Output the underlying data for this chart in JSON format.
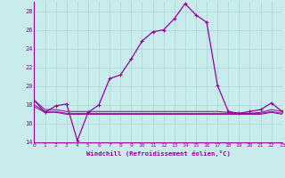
{
  "xlabel": "Windchill (Refroidissement éolien,°C)",
  "background_color": "#c8ecec",
  "grid_color": "#aacccc",
  "line_color": "#990099",
  "x_hours": [
    0,
    1,
    2,
    3,
    4,
    5,
    6,
    7,
    8,
    9,
    10,
    11,
    12,
    13,
    14,
    15,
    16,
    17,
    18,
    19,
    20,
    21,
    22,
    23
  ],
  "windchill": [
    18.5,
    17.2,
    17.9,
    18.1,
    14.2,
    17.2,
    18.0,
    20.8,
    21.2,
    22.9,
    24.8,
    25.8,
    26.0,
    27.2,
    28.8,
    27.6,
    26.8,
    20.1,
    17.3,
    17.1,
    17.3,
    17.5,
    18.2,
    17.3
  ],
  "flat1": [
    18.5,
    17.5,
    17.5,
    17.3,
    17.3,
    17.3,
    17.3,
    17.3,
    17.3,
    17.3,
    17.3,
    17.3,
    17.3,
    17.3,
    17.3,
    17.3,
    17.3,
    17.3,
    17.2,
    17.1,
    17.1,
    17.2,
    17.5,
    17.3
  ],
  "flat2": [
    18.0,
    17.3,
    17.3,
    17.1,
    17.1,
    17.1,
    17.1,
    17.1,
    17.1,
    17.1,
    17.1,
    17.1,
    17.1,
    17.1,
    17.1,
    17.1,
    17.1,
    17.1,
    17.1,
    17.1,
    17.1,
    17.1,
    17.3,
    17.1
  ],
  "flat3": [
    17.8,
    17.2,
    17.2,
    17.0,
    17.0,
    17.0,
    17.0,
    17.0,
    17.0,
    17.0,
    17.0,
    17.0,
    17.0,
    17.0,
    17.0,
    17.0,
    17.0,
    17.0,
    17.0,
    17.0,
    17.0,
    17.0,
    17.2,
    17.0
  ],
  "ylim": [
    14,
    29
  ],
  "yticks": [
    14,
    16,
    18,
    20,
    22,
    24,
    26,
    28
  ],
  "xlim": [
    0,
    23
  ]
}
